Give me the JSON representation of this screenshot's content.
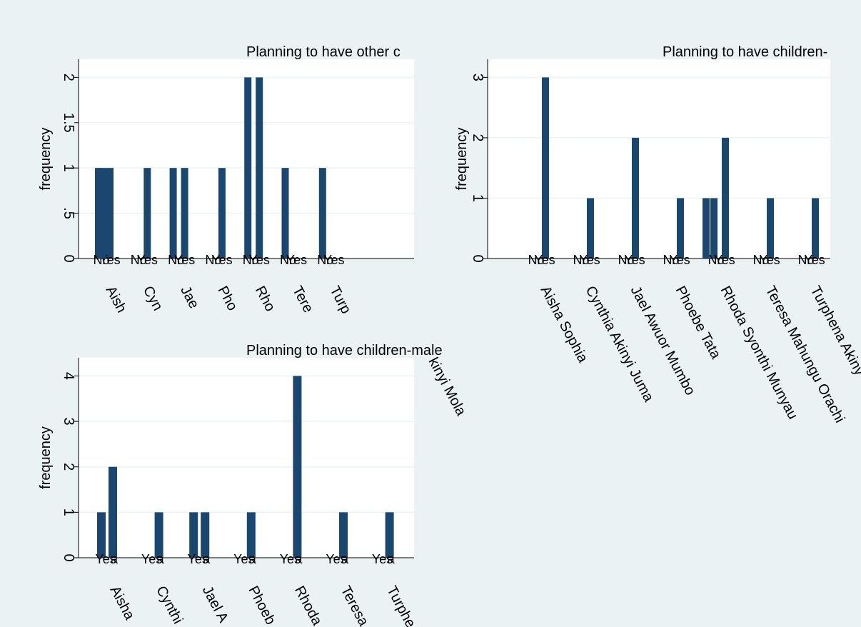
{
  "colors": {
    "bar": "#1a476f",
    "background": "#eaf2f3",
    "plot_area": "#ffffff",
    "grid": "#eaf2f3"
  },
  "chart_data": [
    {
      "type": "bar",
      "title": "Planning to have other c",
      "ylabel": "frequency",
      "ylim": [
        0,
        2.2
      ],
      "yticks": [
        0,
        0.5,
        1,
        1.5,
        2
      ],
      "ytick_labels": [
        "0",
        ".5",
        "1",
        "1.5",
        "2"
      ],
      "grid": true,
      "group_labels": [
        "Aish",
        "Cyn",
        "Jae",
        "Pho",
        "Rho",
        "Tere",
        "Turp"
      ],
      "categories": [
        "No",
        "Yes"
      ],
      "values": [
        [
          1,
          1
        ],
        [
          0,
          1
        ],
        [
          1,
          1
        ],
        [
          0,
          1
        ],
        [
          2,
          2
        ],
        [
          1,
          0
        ],
        [
          1,
          0
        ]
      ],
      "extra_bar": {
        "group": 0,
        "value": 1
      },
      "overflow_text": "kinyi Mola"
    },
    {
      "type": "bar",
      "title": "Planning to have children-",
      "ylabel": "frequency",
      "ylim": [
        0,
        3.3
      ],
      "yticks": [
        0,
        1,
        2,
        3
      ],
      "ytick_labels": [
        "0",
        "1",
        "2",
        "3"
      ],
      "grid": true,
      "group_labels": [
        "Aisha Sophia",
        "Cynthia Akinyi Juma",
        "Jael Awuor Mumbo",
        "Phoebe Tata",
        "Rhoda Syonthi Munyau",
        "Teresa Mahungu Orachi",
        "Turphena Akiny"
      ],
      "categories": [
        "No",
        "Yes"
      ],
      "values": [
        [
          0,
          3
        ],
        [
          0,
          1
        ],
        [
          0,
          2
        ],
        [
          0,
          1
        ],
        [
          1,
          2
        ],
        [
          0,
          1
        ],
        [
          0,
          1
        ]
      ],
      "extra_bar": {
        "group": 4,
        "value": 1
      }
    },
    {
      "type": "bar",
      "title": "Planning to have children-male",
      "ylabel": "frequency",
      "ylim": [
        0,
        4.4
      ],
      "yticks": [
        0,
        1,
        2,
        3,
        4
      ],
      "ytick_labels": [
        "0",
        "1",
        "2",
        "3",
        "4"
      ],
      "grid": true,
      "group_labels": [
        "Aisha",
        "Cynthi",
        "Jael A",
        "Phoeb",
        "Rhoda",
        "Teresa",
        "Turphe"
      ],
      "categories": [
        "Yes",
        "a"
      ],
      "values": [
        [
          1,
          2
        ],
        [
          0,
          1
        ],
        [
          1,
          1
        ],
        [
          0,
          1
        ],
        [
          0,
          4
        ],
        [
          0,
          1
        ],
        [
          0,
          1
        ]
      ]
    }
  ]
}
